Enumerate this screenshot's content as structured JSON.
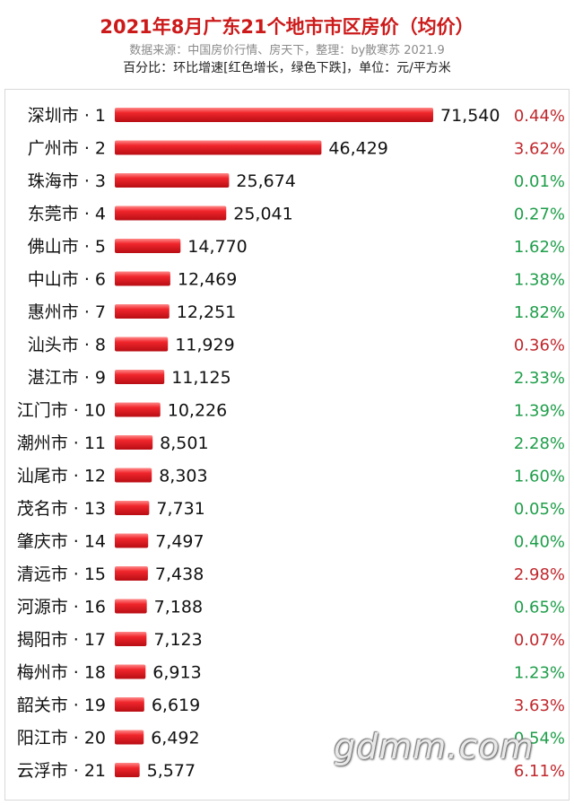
{
  "header": {
    "title": "2021年8月广东21个地市市区房价（均价）",
    "source": "数据来源：中国房价行情、房天下，整理：by散寒苏 2021.9",
    "note": "百分比：环比增速[红色增长，绿色下跌]，单位：元/平方米"
  },
  "watermark": "gdmm.com",
  "colors": {
    "title": "#cc1a1a",
    "bar": "#e8232a",
    "increase": "#c0282d",
    "decrease": "#1f9e4a"
  },
  "chart_data": {
    "type": "bar",
    "orientation": "horizontal",
    "title": "2021年8月广东21个地市市区房价（均价）",
    "xlabel": "",
    "ylabel": "",
    "unit": "元/平方米",
    "grid": false,
    "xlim": [
      0,
      71540
    ],
    "categories": [
      "深圳市 · 1",
      "广州市 · 2",
      "珠海市 · 3",
      "东莞市 · 4",
      "佛山市 · 5",
      "中山市 · 6",
      "惠州市 · 7",
      "汕头市 · 8",
      "湛江市 · 9",
      "江门市 · 10",
      "潮州市 · 11",
      "汕尾市 · 12",
      "茂名市 · 13",
      "肇庆市 · 14",
      "清远市 · 15",
      "河源市 · 16",
      "揭阳市 · 17",
      "梅州市 · 18",
      "韶关市 · 19",
      "阳江市 · 20",
      "云浮市 · 21"
    ],
    "values": [
      71540,
      46429,
      25674,
      25041,
      14770,
      12469,
      12251,
      11929,
      11125,
      10226,
      8501,
      8303,
      7731,
      7497,
      7438,
      7188,
      7123,
      6913,
      6619,
      6492,
      5577
    ],
    "value_labels": [
      "71,540",
      "46,429",
      "25,674",
      "25,041",
      "14,770",
      "12,469",
      "12,251",
      "11,929",
      "11,125",
      "10,226",
      "8,501",
      "8,303",
      "7,731",
      "7,497",
      "7,438",
      "7,188",
      "7,123",
      "6,913",
      "6,619",
      "6,492",
      "5,577"
    ],
    "change_labels": [
      "0.44%",
      "3.62%",
      "0.01%",
      "0.27%",
      "1.62%",
      "1.38%",
      "1.82%",
      "0.36%",
      "2.33%",
      "1.39%",
      "2.28%",
      "1.60%",
      "0.05%",
      "0.40%",
      "2.98%",
      "0.65%",
      "0.07%",
      "1.23%",
      "3.63%",
      "0.54%",
      "6.11%"
    ],
    "change_direction": [
      "increase",
      "increase",
      "decrease",
      "decrease",
      "decrease",
      "decrease",
      "decrease",
      "increase",
      "decrease",
      "decrease",
      "decrease",
      "decrease",
      "decrease",
      "decrease",
      "increase",
      "decrease",
      "increase",
      "decrease",
      "increase",
      "decrease",
      "increase"
    ]
  }
}
